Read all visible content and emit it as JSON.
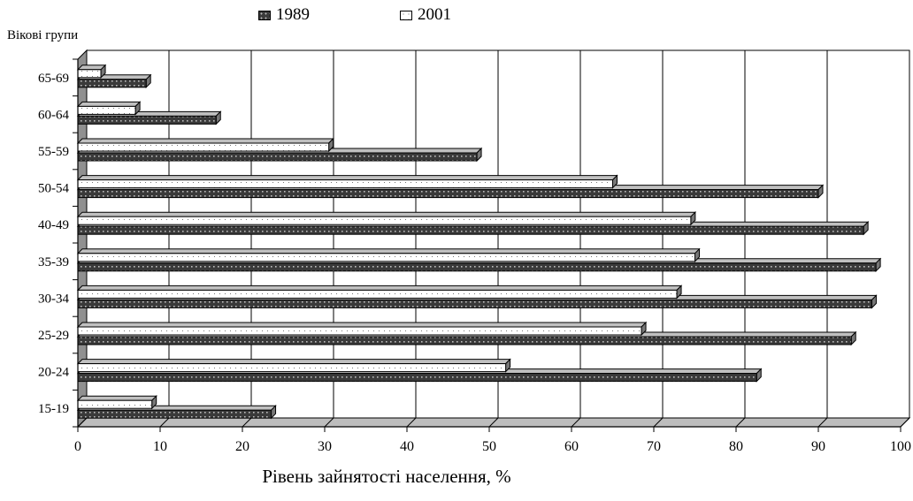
{
  "chart_data": {
    "type": "bar",
    "orientation": "horizontal",
    "y_axis_title": "Вікові групи",
    "xlabel": "Рівень зайнятості населення, %",
    "categories": [
      "15-19",
      "20-24",
      "25-29",
      "30-34",
      "35-39",
      "40-49",
      "50-54",
      "55-59",
      "60-64",
      "65-69"
    ],
    "series": [
      {
        "name": "1989",
        "values": [
          23.5,
          82.5,
          94,
          96.5,
          97,
          95.5,
          90,
          48.5,
          16.8,
          8.3
        ]
      },
      {
        "name": "2001",
        "values": [
          9,
          52,
          68.5,
          72.8,
          75,
          74.5,
          65,
          30.5,
          7,
          2.8
        ]
      }
    ],
    "xlim": [
      0,
      100
    ],
    "xticks": [
      0,
      10,
      20,
      30,
      40,
      50,
      60,
      70,
      80,
      90,
      100
    ],
    "grid": true,
    "legend_position": "top",
    "bar_style": "3d-shadow",
    "colors": {
      "series_1989_fill": "#3a3a3a",
      "series_1989_dot": "#bdbdbd",
      "series_2001_fill": "#ffffff",
      "bar_top_face": "#c0c0c0",
      "wall": "#ffffff",
      "floor": "#909090",
      "grid": "#000000"
    }
  }
}
